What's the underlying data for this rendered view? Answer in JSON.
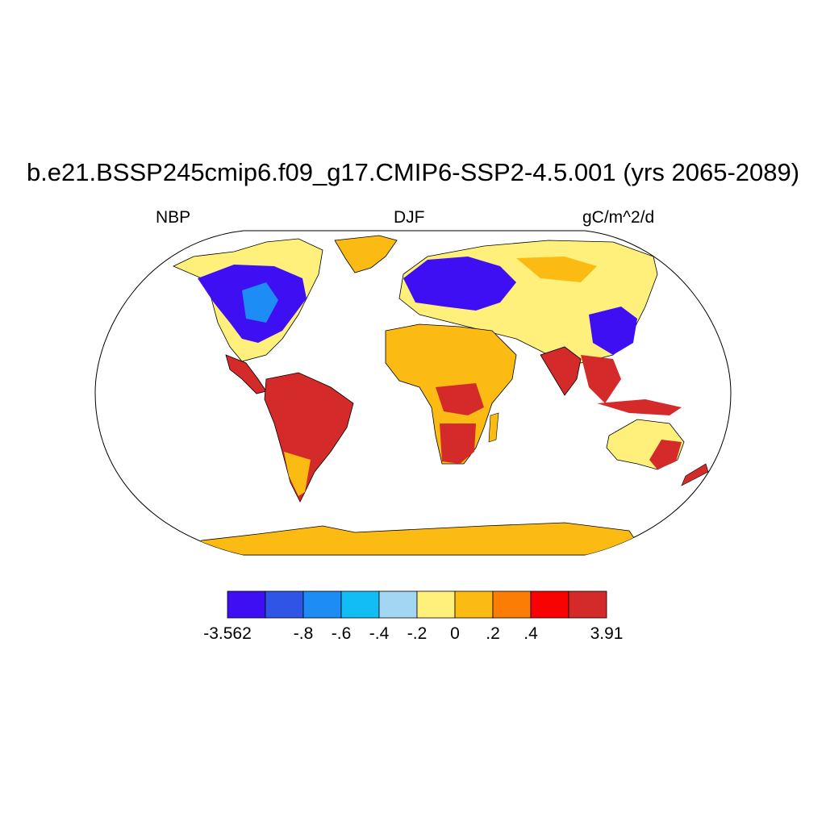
{
  "title": "b.e21.BSSP245cmip6.f09_g17.CMIP6-SSP2-4.5.001 (yrs 2065-2089)",
  "left_label": "NBP",
  "center_label": "DJF",
  "right_label": "gC/m^2/d",
  "colorbar": {
    "colors": [
      "#3e0ff2",
      "#2e55e6",
      "#1e8cf5",
      "#12bdf5",
      "#a3d6f2",
      "#fff07c",
      "#fbbb12",
      "#fc7d06",
      "#f80202",
      "#d42a2a"
    ],
    "labels": [
      "-3.562",
      "-.8",
      "-.6",
      "-.4",
      "-.2",
      "0",
      ".2",
      ".4",
      "3.91"
    ]
  },
  "land_colors": {
    "strong_negative": "#3e0ff2",
    "negative": "#1e8cf5",
    "weak_negative": "#a3d6f2",
    "near_zero": "#fff07c",
    "weak_positive": "#fbbb12",
    "strong_positive": "#d42a2a"
  }
}
